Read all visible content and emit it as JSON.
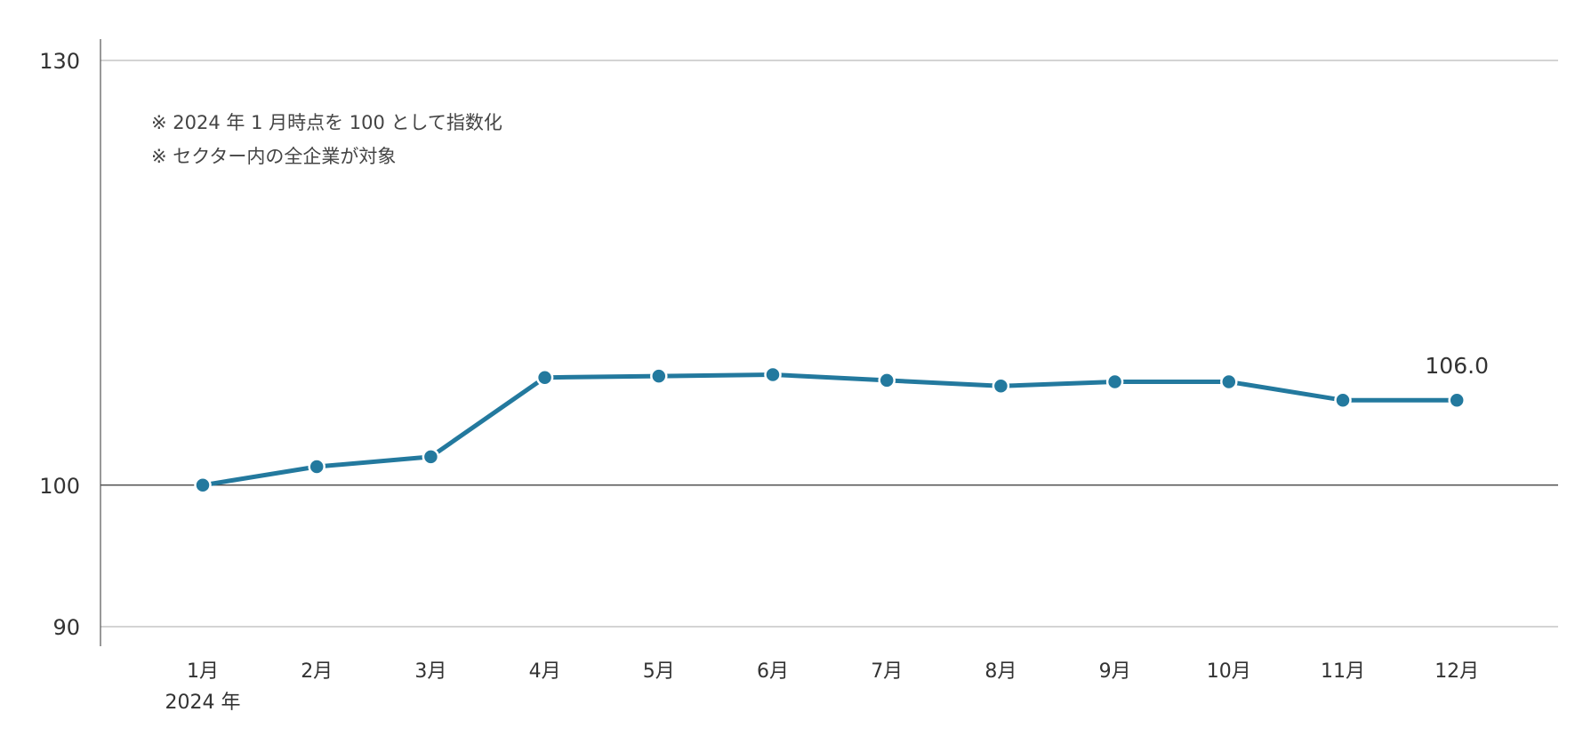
{
  "chart_data": {
    "type": "line",
    "categories": [
      "1月",
      "2月",
      "3月",
      "4月",
      "5月",
      "6月",
      "7月",
      "8月",
      "9月",
      "10月",
      "11月",
      "12月"
    ],
    "x_sublabel": "2024 年",
    "values": [
      100.0,
      101.3,
      102.0,
      107.6,
      107.7,
      107.8,
      107.4,
      107.0,
      107.3,
      107.3,
      106.0,
      106.0
    ],
    "y_ticks": [
      "90",
      "100",
      "130"
    ],
    "y_tick_values": [
      90,
      100,
      130
    ],
    "ylim": [
      90,
      130
    ],
    "baseline": 100,
    "notes": [
      "※ 2024 年 1 月時点を 100 として指数化",
      "※ セクター内の全企業が対象"
    ],
    "end_label": "106.0",
    "line_color": "#23799e",
    "grid_color": "#bbbbbb",
    "baseline_color": "#333333"
  }
}
